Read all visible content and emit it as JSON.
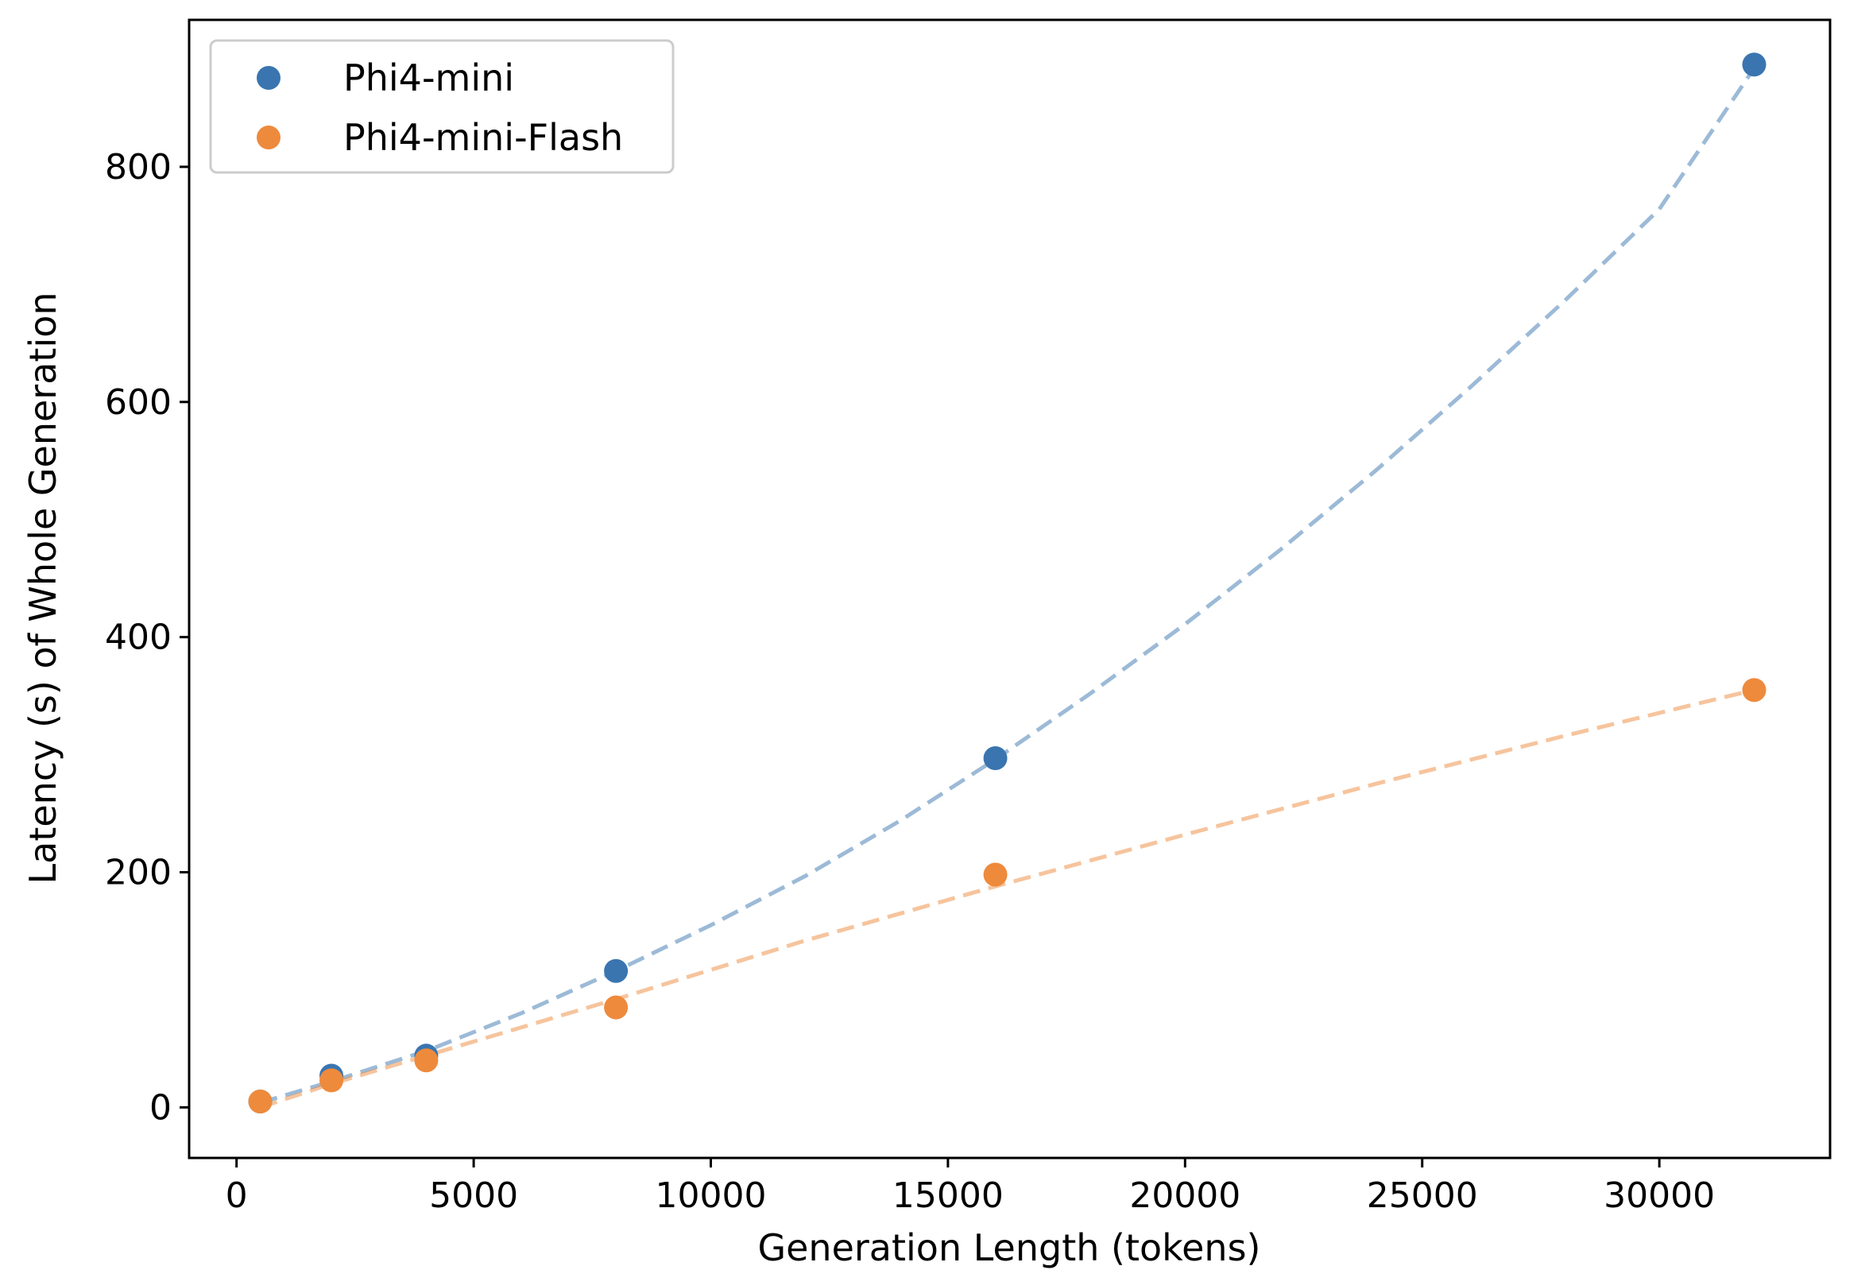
{
  "chart_data": {
    "type": "scatter",
    "title": "",
    "xlabel": "Generation Length (tokens)",
    "ylabel": "Latency (s) of Whole Generation",
    "xlim": [
      -1000,
      33600
    ],
    "ylim": [
      -43,
      925
    ],
    "xticks": [
      0,
      5000,
      10000,
      15000,
      20000,
      25000,
      30000
    ],
    "yticks": [
      0,
      200,
      400,
      600,
      800
    ],
    "grid": false,
    "legend_position": "upper-left",
    "series": [
      {
        "name": "Phi4-mini",
        "color": "#3a75b0",
        "x": [
          500,
          2000,
          4000,
          8000,
          16000,
          32000
        ],
        "y": [
          5,
          27,
          44,
          116,
          297,
          887
        ],
        "trend": [
          [
            500,
            4
          ],
          [
            2000,
            22
          ],
          [
            4000,
            48
          ],
          [
            6000,
            80
          ],
          [
            8000,
            116
          ],
          [
            10000,
            155
          ],
          [
            12000,
            197
          ],
          [
            14000,
            244
          ],
          [
            16000,
            296
          ],
          [
            18000,
            352
          ],
          [
            20000,
            411
          ],
          [
            22000,
            474
          ],
          [
            24000,
            541
          ],
          [
            26000,
            612
          ],
          [
            28000,
            686
          ],
          [
            30000,
            764
          ],
          [
            32000,
            884
          ]
        ]
      },
      {
        "name": "Phi4-mini-Flash",
        "color": "#ee8a3c",
        "x": [
          500,
          2000,
          4000,
          8000,
          16000,
          32000
        ],
        "y": [
          5,
          23,
          40,
          85,
          198,
          355
        ],
        "trend": [
          [
            500,
            0
          ],
          [
            2000,
            20
          ],
          [
            4000,
            44
          ],
          [
            8000,
            92
          ],
          [
            12000,
            142
          ],
          [
            16000,
            188
          ],
          [
            20000,
            232
          ],
          [
            24000,
            275
          ],
          [
            28000,
            316
          ],
          [
            32000,
            355
          ]
        ]
      }
    ]
  }
}
